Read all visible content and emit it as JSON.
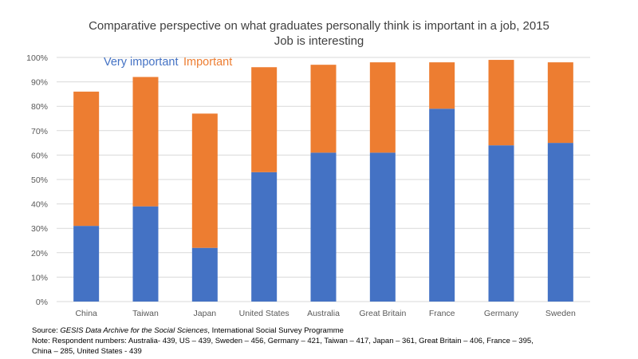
{
  "chart_data": {
    "type": "bar",
    "stacked": true,
    "title": "Comparative perspective on what graduates personally think is important in a job, 2015",
    "subtitle": "Job is interesting",
    "categories": [
      "China",
      "Taiwan",
      "Japan",
      "United States",
      "Australia",
      "Great Britain",
      "France",
      "Germany",
      "Sweden"
    ],
    "series": [
      {
        "name": "Very important",
        "color": "#4472C4",
        "values": [
          31,
          39,
          22,
          53,
          61,
          61,
          79,
          64,
          65
        ]
      },
      {
        "name": "Important",
        "color": "#ED7D31",
        "values": [
          55,
          53,
          55,
          43,
          36,
          37,
          19,
          35,
          33
        ]
      }
    ],
    "ylim": [
      0,
      100
    ],
    "yticks": [
      "0%",
      "10%",
      "20%",
      "30%",
      "40%",
      "50%",
      "60%",
      "70%",
      "80%",
      "90%",
      "100%"
    ],
    "grid": true,
    "legend_placement": "top-left"
  },
  "footer": {
    "source_prefix": "Source: ",
    "source_italic": "GESIS Data Archive for the Social Sciences",
    "source_rest": ", International Social Survey Programme",
    "note_line1": "Note: Respondent numbers: Australia- 439, US – 439, Sweden – 456, Germany – 421, Taiwan – 417, Japan – 361, Great Britain – 406, France – 395,",
    "note_line2": "China – 285, United States - 439"
  }
}
